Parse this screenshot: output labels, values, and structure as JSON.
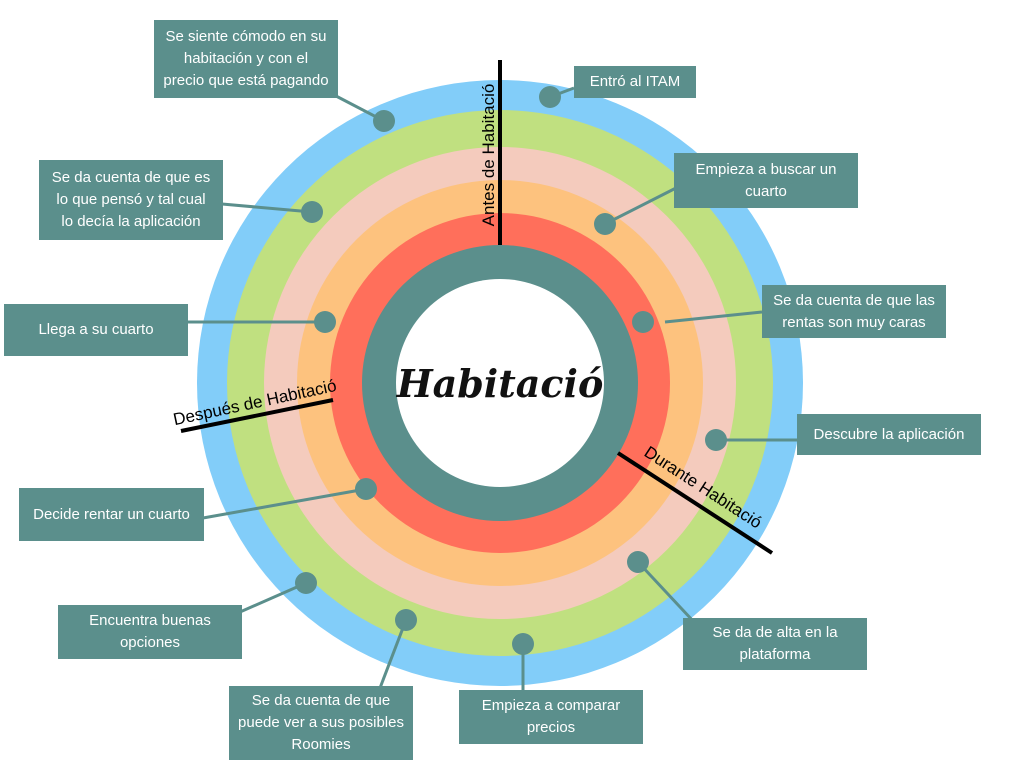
{
  "center_title": "Habitació",
  "phases": [
    {
      "label": "Antes de Habitació"
    },
    {
      "label": "Durante Habitació"
    },
    {
      "label": "Después de Habitació"
    }
  ],
  "steps": [
    {
      "text": "Entró al ITAM"
    },
    {
      "text": "Empieza a buscar un\ncuarto"
    },
    {
      "text": "Se da cuenta de que las\nrentas son muy caras"
    },
    {
      "text": "Descubre la aplicación"
    },
    {
      "text": "Se da de alta en la\nplataforma"
    },
    {
      "text": "Empieza a comparar\nprecios"
    },
    {
      "text": "Se da cuenta de que\npuede ver a sus posibles\nRoomies"
    },
    {
      "text": "Encuentra buenas\nopciones"
    },
    {
      "text": "Decide rentar un cuarto"
    },
    {
      "text": "Llega a su cuarto"
    },
    {
      "text": "Se da cuenta de que es\nlo que pensó  y tal cual\nlo decía la aplicación"
    },
    {
      "text": "Se siente cómodo en su\nhabitación y con el\nprecio que está pagando"
    }
  ],
  "colors": {
    "ring_outer": "#82cdf9",
    "ring_green": "#c0e080",
    "ring_pink": "#f4cbbd",
    "ring_orange": "#fdc27e",
    "ring_red": "#ff6f5b",
    "ring_teal": "#5b8f8c",
    "box": "#5b8f8c",
    "connector": "#5b8f8c"
  }
}
